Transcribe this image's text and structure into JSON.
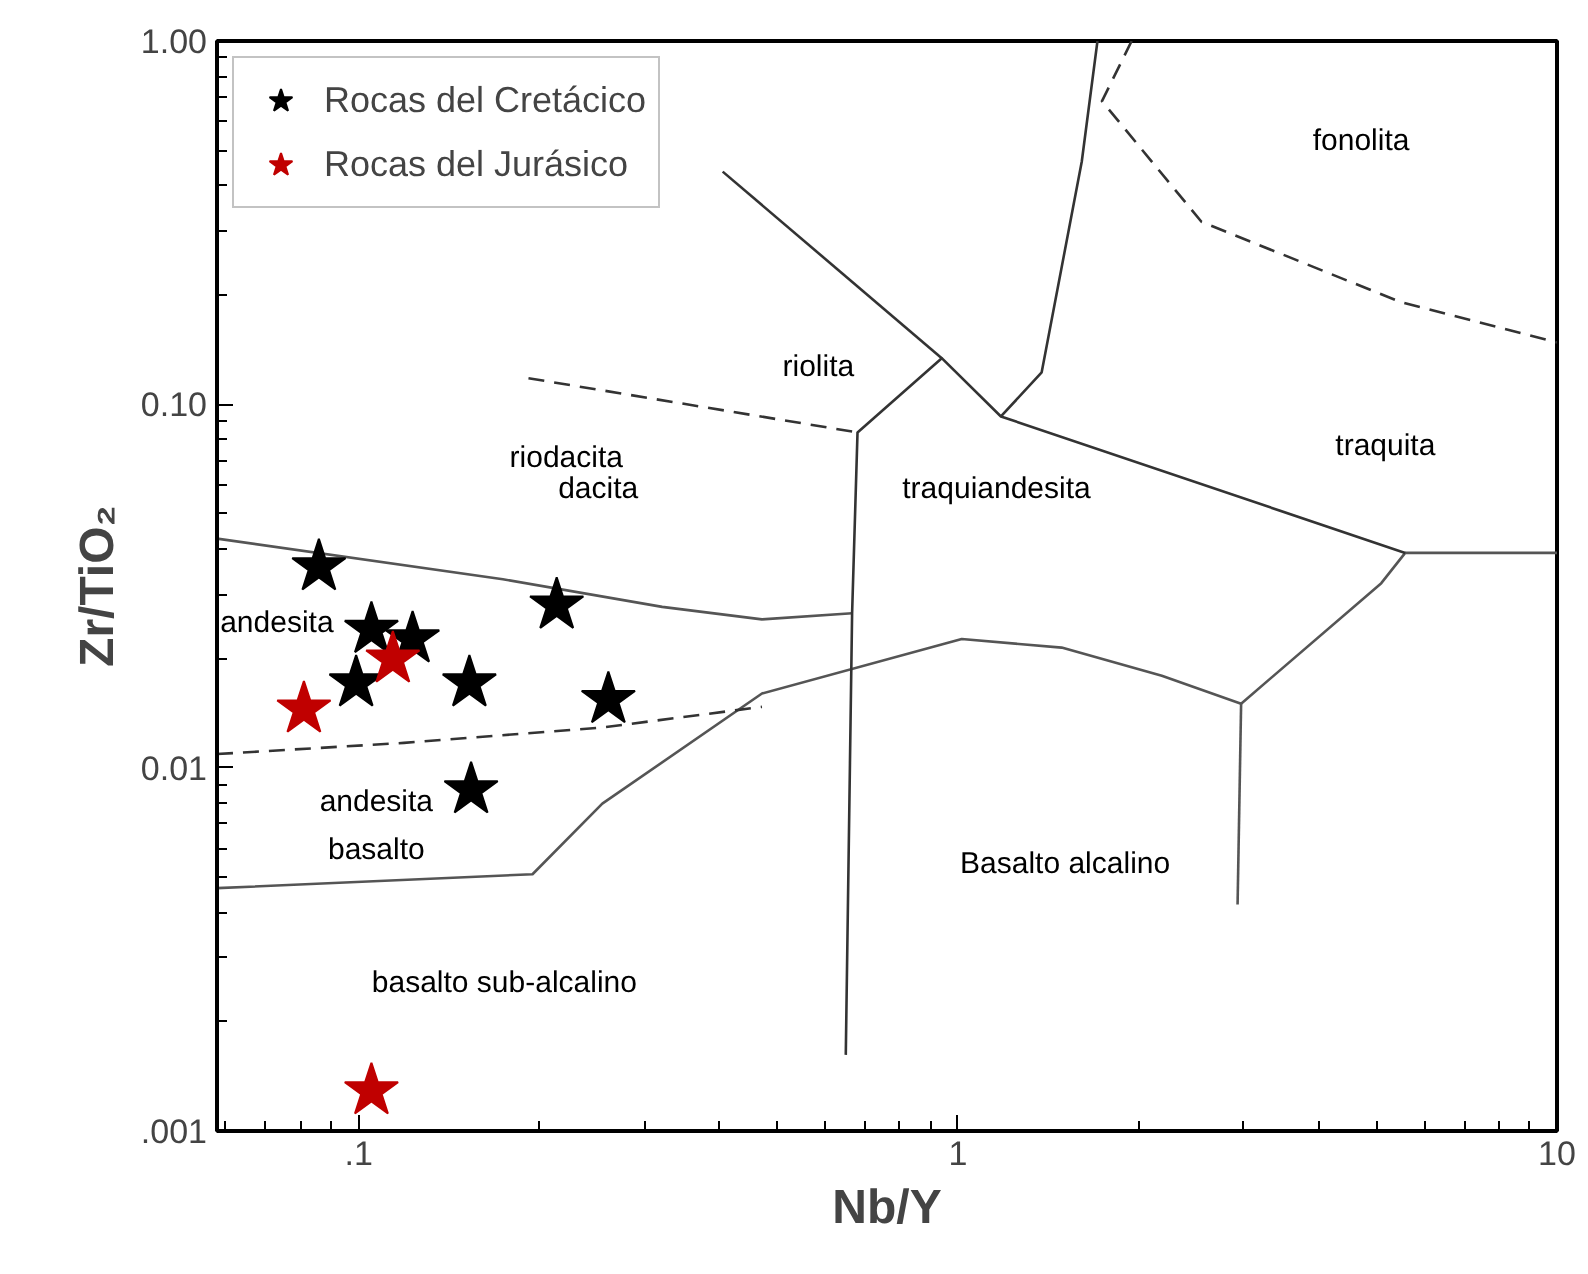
{
  "chart_data": {
    "type": "scatter",
    "xlabel": "Nb/Y",
    "ylabel": "Zr/TiO₂",
    "log": "xy",
    "legend": "top left",
    "grid": false,
    "xlim": [
      0.058,
      10
    ],
    "ylim": [
      0.001,
      1
    ],
    "xticks": [
      {
        "value": 0.1,
        "label": ".1"
      },
      1,
      10
    ],
    "yticks": [
      {
        "value": 0.001,
        "label": ".001"
      },
      {
        "value": 0.01,
        "label": "0.01"
      },
      {
        "value": 0.1,
        "label": "0.10"
      },
      {
        "value": 1,
        "label": "1.00"
      }
    ],
    "series": [
      {
        "type": "line",
        "color": "#555555",
        "line_style": "solid",
        "x": [
          0.058,
          0.174,
          0.321,
          0.471,
          0.666
        ],
        "values": [
          0.0427,
          0.033,
          0.0277,
          0.0256,
          0.0266
        ]
      },
      {
        "type": "line",
        "color": "#555555",
        "line_style": "solid",
        "x": [
          0.058,
          0.195,
          0.255,
          0.471,
          1.015,
          1.49,
          2.19,
          2.97,
          5.09,
          5.58,
          10
        ],
        "values": [
          0.00466,
          0.00509,
          0.00796,
          0.016,
          0.0226,
          0.0214,
          0.0179,
          0.015,
          0.0322,
          0.039,
          0.039
        ]
      },
      {
        "type": "line",
        "color": "#555555",
        "line_style": "solid",
        "x": [
          2.97,
          2.93
        ],
        "values": [
          0.015,
          0.0042
        ]
      },
      {
        "type": "line",
        "color": "#333333",
        "line_style": "solid",
        "x": [
          0.65,
          0.666,
          0.68,
          0.94,
          1.18,
          5.58
        ],
        "values": [
          0.00162,
          0.0266,
          0.0837,
          0.134,
          0.0926,
          0.039
        ]
      },
      {
        "type": "line",
        "color": "#333333",
        "line_style": "solid",
        "x": [
          1.18,
          1.38,
          1.61,
          1.71
        ],
        "values": [
          0.0926,
          0.1225,
          0.466,
          1
        ]
      },
      {
        "type": "line",
        "color": "#333333",
        "line_style": "solid",
        "x": [
          0.405,
          0.94
        ],
        "values": [
          0.437,
          0.134
        ]
      },
      {
        "type": "line",
        "color": "#333333",
        "line_style": "dashed",
        "x": [
          0.058,
          0.119,
          0.255,
          0.471
        ],
        "values": [
          0.0109,
          0.0117,
          0.0129,
          0.0147
        ]
      },
      {
        "type": "line",
        "color": "#333333",
        "line_style": "dashed",
        "x": [
          0.192,
          0.68
        ],
        "values": [
          0.118,
          0.0837
        ]
      },
      {
        "type": "line",
        "color": "#333333",
        "line_style": "dashed",
        "x": [
          1.95,
          1.74,
          2.55,
          5.49,
          10
        ],
        "values": [
          1,
          0.683,
          0.318,
          0.191,
          0.148
        ]
      },
      {
        "name": "Rocas del Cretácico",
        "color": "#000000",
        "marker": "star",
        "x": [
          0.0858,
          0.105,
          0.123,
          0.099,
          0.153,
          0.214,
          0.261,
          0.154
        ],
        "values": [
          0.0357,
          0.024,
          0.0226,
          0.0171,
          0.0171,
          0.028,
          0.0154,
          0.00869
        ]
      },
      {
        "name": "Rocas del Jurásico",
        "color": "#c00000",
        "marker": "star",
        "x": [
          0.081,
          0.114,
          0.105
        ],
        "values": [
          0.0145,
          0.0199,
          0.00129
        ]
      }
    ],
    "annotations": [
      "fonolita",
      "riolita",
      "riodacita",
      "dacita",
      "traquiandesita",
      "traquita",
      "andesita",
      "andesita\nbasalto",
      "Basalto alcalino",
      "basalto sub-alcalino"
    ]
  }
}
